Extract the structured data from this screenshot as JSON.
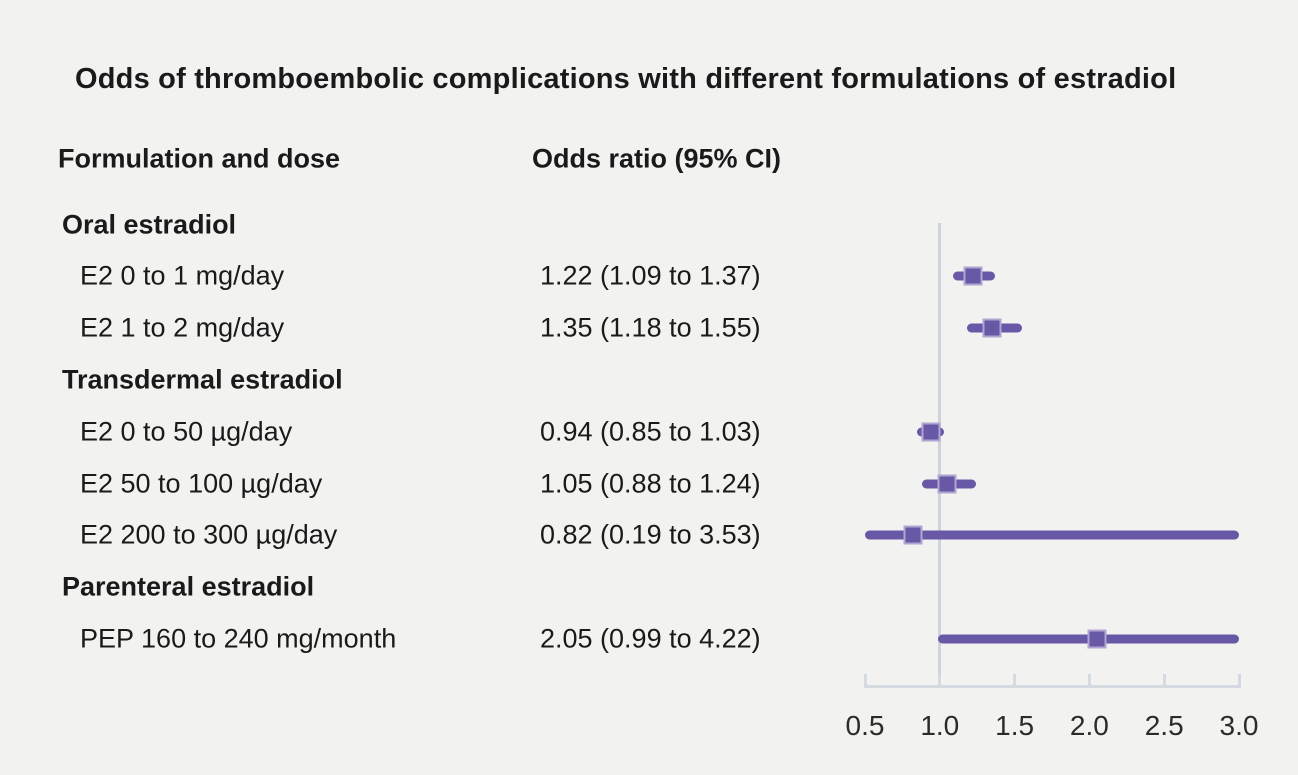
{
  "title": "Odds of thromboembolic complications with different formulations of estradiol",
  "columns": {
    "left": "Formulation and dose",
    "right": "Odds ratio (95% CI)"
  },
  "colors": {
    "accent": "#6858a6",
    "marker_edge": "#b2a5d3",
    "reference_line": "#cdd4dd",
    "axis": "#d4dae1",
    "text": "#1a1a1a",
    "background": "#f2f2f0"
  },
  "chart_data": {
    "type": "forest",
    "title": "Odds of thromboembolic complications with different formulations of estradiol",
    "x_axis": {
      "min": 0.5,
      "max": 3.0,
      "ticks": [
        0.5,
        1.0,
        1.5,
        2.0,
        2.5,
        3.0
      ],
      "tick_labels": [
        "0.5",
        "1.0",
        "1.5",
        "2.0",
        "2.5",
        "3.0"
      ],
      "reference_line": 1.0
    },
    "legend": "none",
    "grid": false,
    "rows": [
      {
        "type": "section",
        "label": "Oral estradiol"
      },
      {
        "type": "item",
        "label": "E2 0 to 1 mg/day",
        "value_text": "1.22 (1.09 to 1.37)",
        "estimate": 1.22,
        "ci_low": 1.09,
        "ci_high": 1.37
      },
      {
        "type": "item",
        "label": "E2 1 to 2 mg/day",
        "value_text": "1.35 (1.18 to 1.55)",
        "estimate": 1.35,
        "ci_low": 1.18,
        "ci_high": 1.55
      },
      {
        "type": "section",
        "label": "Transdermal estradiol"
      },
      {
        "type": "item",
        "label": "E2 0 to 50 µg/day",
        "value_text": "0.94 (0.85 to 1.03)",
        "estimate": 0.94,
        "ci_low": 0.85,
        "ci_high": 1.03
      },
      {
        "type": "item",
        "label": "E2 50 to 100 µg/day",
        "value_text": "1.05 (0.88 to 1.24)",
        "estimate": 1.05,
        "ci_low": 0.88,
        "ci_high": 1.24
      },
      {
        "type": "item",
        "label": "E2 200 to 300 µg/day",
        "value_text": "0.82 (0.19 to 3.53)",
        "estimate": 0.82,
        "ci_low": 0.19,
        "ci_high": 3.53
      },
      {
        "type": "section",
        "label": "Parenteral estradiol"
      },
      {
        "type": "item",
        "label": "PEP 160 to 240 mg/month",
        "value_text": "2.05 (0.99 to 4.22)",
        "estimate": 2.05,
        "ci_low": 0.99,
        "ci_high": 4.22
      }
    ]
  }
}
